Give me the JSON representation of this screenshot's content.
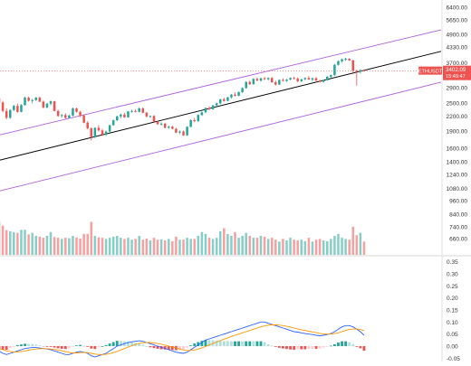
{
  "chart_data": [
    {
      "type": "candlestick",
      "symbol_label": "ETHUSDT",
      "last_price_label": "3402.09",
      "countdown_label": "15:49:47",
      "y_scale": "log",
      "ylim": [
        570,
        6600
      ],
      "y_ticks": [
        "6400.00",
        "5650.00",
        "4900.00",
        "4330.00",
        "3700.00",
        "3300.00",
        "2900.00",
        "2500.00",
        "2200.00",
        "1900.00",
        "1600.00",
        "1400.00",
        "1240.00",
        "1080.00",
        "960.00",
        "840.00",
        "740.00",
        "660.00"
      ],
      "price_tick_values": [
        6400,
        5650,
        4900,
        4330,
        3700,
        3300,
        2900,
        2500,
        2200,
        1900,
        1600,
        1400,
        1240,
        1080,
        960,
        840,
        740,
        660
      ],
      "last_price": 3402.09,
      "channel": {
        "color": "#b061e0",
        "lower_line": {
          "start": 1050,
          "end": 3050
        },
        "middle_line": {
          "start": 1420,
          "end": 4130,
          "color": "#000000"
        },
        "upper_line": {
          "start": 1820,
          "end": 5100
        }
      },
      "candles": [
        [
          2600,
          2620,
          2480,
          2500
        ],
        [
          2500,
          2540,
          2270,
          2300
        ],
        [
          2300,
          2360,
          2120,
          2150
        ],
        [
          2150,
          2340,
          2130,
          2320
        ],
        [
          2320,
          2440,
          2300,
          2420
        ],
        [
          2420,
          2470,
          2260,
          2280
        ],
        [
          2280,
          2460,
          2270,
          2440
        ],
        [
          2440,
          2650,
          2420,
          2620
        ],
        [
          2620,
          2650,
          2520,
          2540
        ],
        [
          2540,
          2590,
          2480,
          2560
        ],
        [
          2560,
          2640,
          2540,
          2620
        ],
        [
          2620,
          2650,
          2510,
          2520
        ],
        [
          2520,
          2550,
          2360,
          2380
        ],
        [
          2380,
          2490,
          2360,
          2470
        ],
        [
          2470,
          2550,
          2430,
          2530
        ],
        [
          2530,
          2540,
          2290,
          2300
        ],
        [
          2300,
          2330,
          2170,
          2190
        ],
        [
          2190,
          2230,
          2150,
          2210
        ],
        [
          2210,
          2250,
          2130,
          2150
        ],
        [
          2150,
          2220,
          2140,
          2200
        ],
        [
          2200,
          2380,
          2180,
          2360
        ],
        [
          2360,
          2380,
          2260,
          2280
        ],
        [
          2280,
          2300,
          2170,
          2200
        ],
        [
          2200,
          2220,
          2040,
          2050
        ],
        [
          2050,
          2080,
          1920,
          1940
        ],
        [
          1940,
          1960,
          1720,
          1780
        ],
        [
          1780,
          1960,
          1760,
          1950
        ],
        [
          1950,
          2000,
          1880,
          1900
        ],
        [
          1900,
          1930,
          1800,
          1820
        ],
        [
          1820,
          1900,
          1800,
          1880
        ],
        [
          1880,
          2010,
          1860,
          2000
        ],
        [
          2000,
          2110,
          1990,
          2100
        ],
        [
          2100,
          2200,
          2080,
          2180
        ],
        [
          2180,
          2240,
          2140,
          2220
        ],
        [
          2220,
          2260,
          2150,
          2160
        ],
        [
          2160,
          2300,
          2150,
          2290
        ],
        [
          2290,
          2330,
          2260,
          2300
        ],
        [
          2300,
          2340,
          2270,
          2280
        ],
        [
          2280,
          2380,
          2270,
          2360
        ],
        [
          2360,
          2380,
          2250,
          2260
        ],
        [
          2260,
          2280,
          2160,
          2180
        ],
        [
          2180,
          2200,
          2150,
          2190
        ],
        [
          2190,
          2210,
          2060,
          2070
        ],
        [
          2070,
          2090,
          2010,
          2020
        ],
        [
          2020,
          2060,
          1990,
          2030
        ],
        [
          2030,
          2050,
          1940,
          1950
        ],
        [
          1950,
          1990,
          1930,
          1970
        ],
        [
          1970,
          1990,
          1920,
          1930
        ],
        [
          1930,
          1950,
          1850,
          1860
        ],
        [
          1860,
          1900,
          1830,
          1880
        ],
        [
          1880,
          1900,
          1800,
          1810
        ],
        [
          1810,
          1980,
          1800,
          1970
        ],
        [
          1970,
          2120,
          1960,
          2100
        ],
        [
          2100,
          2150,
          2060,
          2080
        ],
        [
          2080,
          2230,
          2070,
          2210
        ],
        [
          2210,
          2290,
          2190,
          2270
        ],
        [
          2270,
          2380,
          2250,
          2370
        ],
        [
          2370,
          2410,
          2320,
          2340
        ],
        [
          2340,
          2440,
          2330,
          2430
        ],
        [
          2430,
          2500,
          2400,
          2480
        ],
        [
          2480,
          2590,
          2460,
          2580
        ],
        [
          2580,
          2620,
          2520,
          2540
        ],
        [
          2540,
          2640,
          2530,
          2630
        ],
        [
          2630,
          2720,
          2600,
          2700
        ],
        [
          2700,
          2760,
          2650,
          2670
        ],
        [
          2670,
          2780,
          2660,
          2770
        ],
        [
          2770,
          2900,
          2740,
          2880
        ],
        [
          2880,
          3080,
          2860,
          3060
        ],
        [
          3060,
          3100,
          2970,
          2990
        ],
        [
          2990,
          3170,
          2980,
          3150
        ],
        [
          3150,
          3200,
          3080,
          3100
        ],
        [
          3100,
          3190,
          3060,
          3170
        ],
        [
          3170,
          3220,
          3120,
          3140
        ],
        [
          3140,
          3200,
          3110,
          3180
        ],
        [
          3180,
          3210,
          3030,
          3050
        ],
        [
          3050,
          3100,
          2950,
          2980
        ],
        [
          2980,
          3140,
          2970,
          3120
        ],
        [
          3120,
          3170,
          3070,
          3090
        ],
        [
          3090,
          3150,
          3060,
          3130
        ],
        [
          3130,
          3200,
          3110,
          3180
        ],
        [
          3180,
          3220,
          3140,
          3160
        ],
        [
          3160,
          3200,
          3050,
          3080
        ],
        [
          3080,
          3150,
          3060,
          3140
        ],
        [
          3140,
          3200,
          3110,
          3180
        ],
        [
          3180,
          3240,
          3120,
          3130
        ],
        [
          3130,
          3190,
          3070,
          3170
        ],
        [
          3170,
          3210,
          3090,
          3100
        ],
        [
          3100,
          3130,
          3040,
          3060
        ],
        [
          3060,
          3120,
          3040,
          3110
        ],
        [
          3110,
          3240,
          3100,
          3220
        ],
        [
          3220,
          3290,
          3180,
          3270
        ],
        [
          3270,
          3650,
          3250,
          3620
        ],
        [
          3620,
          3780,
          3590,
          3750
        ],
        [
          3750,
          3850,
          3700,
          3820
        ],
        [
          3820,
          3880,
          3760,
          3840
        ],
        [
          3840,
          3860,
          3760,
          3780
        ],
        [
          3780,
          3800,
          3300,
          3420
        ],
        [
          3420,
          3450,
          2950,
          3380
        ],
        [
          3380,
          3460,
          3320,
          3440
        ],
        [
          3440,
          3470,
          3380,
          3402
        ]
      ],
      "volume": {
        "values": [
          0.88,
          0.77,
          0.65,
          0.62,
          0.6,
          0.58,
          0.66,
          0.66,
          0.54,
          0.58,
          0.5,
          0.48,
          0.45,
          0.5,
          0.6,
          0.47,
          0.45,
          0.42,
          0.45,
          0.44,
          0.5,
          0.46,
          0.43,
          0.55,
          0.55,
          0.87,
          0.5,
          0.46,
          0.45,
          0.42,
          0.45,
          0.48,
          0.5,
          0.45,
          0.42,
          0.45,
          0.4,
          0.42,
          0.5,
          0.4,
          0.43,
          0.38,
          0.45,
          0.4,
          0.41,
          0.38,
          0.42,
          0.36,
          0.48,
          0.4,
          0.4,
          0.45,
          0.42,
          0.42,
          0.5,
          0.6,
          0.55,
          0.45,
          0.42,
          0.45,
          0.62,
          0.7,
          0.55,
          0.5,
          0.6,
          0.45,
          0.5,
          0.58,
          0.5,
          0.45,
          0.45,
          0.5,
          0.48,
          0.42,
          0.45,
          0.4,
          0.35,
          0.42,
          0.38,
          0.45,
          0.4,
          0.38,
          0.4,
          0.36,
          0.45,
          0.35,
          0.4,
          0.42,
          0.38,
          0.36,
          0.42,
          0.5,
          0.55,
          0.45,
          0.42,
          0.4,
          0.74,
          0.52,
          0.58,
          0.35
        ]
      },
      "macd": {
        "y_ticks": [
          "0.35",
          "0.30",
          "0.25",
          "0.20",
          "0.15",
          "0.10",
          "0.05",
          "0.00",
          "-0.05"
        ],
        "ylim": [
          -0.06,
          0.36
        ],
        "macd_color": "#2962ff",
        "signal_color": "#ff9800",
        "macd_line": [
          -0.02,
          -0.03,
          -0.035,
          -0.03,
          -0.025,
          -0.02,
          -0.015,
          -0.01,
          -0.008,
          -0.006,
          -0.006,
          -0.008,
          -0.01,
          -0.012,
          -0.015,
          -0.02,
          -0.025,
          -0.03,
          -0.035,
          -0.035,
          -0.03,
          -0.025,
          -0.022,
          -0.025,
          -0.03,
          -0.04,
          -0.045,
          -0.04,
          -0.035,
          -0.03,
          -0.02,
          -0.01,
          0.0,
          0.005,
          0.01,
          0.015,
          0.018,
          0.02,
          0.022,
          0.02,
          0.015,
          0.01,
          0.005,
          0.0,
          -0.005,
          -0.01,
          -0.015,
          -0.02,
          -0.025,
          -0.028,
          -0.03,
          -0.025,
          -0.015,
          -0.005,
          0.005,
          0.015,
          0.025,
          0.03,
          0.035,
          0.04,
          0.045,
          0.05,
          0.055,
          0.06,
          0.065,
          0.07,
          0.075,
          0.08,
          0.085,
          0.09,
          0.095,
          0.1,
          0.1,
          0.095,
          0.09,
          0.085,
          0.08,
          0.075,
          0.07,
          0.065,
          0.06,
          0.058,
          0.055,
          0.052,
          0.05,
          0.048,
          0.045,
          0.043,
          0.045,
          0.048,
          0.052,
          0.06,
          0.07,
          0.08,
          0.085,
          0.085,
          0.08,
          0.07,
          0.06,
          0.045
        ],
        "signal_line": [
          -0.01,
          -0.015,
          -0.02,
          -0.022,
          -0.024,
          -0.024,
          -0.022,
          -0.02,
          -0.017,
          -0.014,
          -0.012,
          -0.011,
          -0.01,
          -0.011,
          -0.012,
          -0.014,
          -0.016,
          -0.019,
          -0.023,
          -0.026,
          -0.028,
          -0.028,
          -0.027,
          -0.026,
          -0.027,
          -0.03,
          -0.033,
          -0.035,
          -0.035,
          -0.034,
          -0.031,
          -0.027,
          -0.022,
          -0.016,
          -0.01,
          -0.004,
          0.002,
          0.007,
          0.011,
          0.014,
          0.015,
          0.015,
          0.013,
          0.011,
          0.008,
          0.004,
          0.0,
          -0.004,
          -0.008,
          -0.012,
          -0.016,
          -0.018,
          -0.018,
          -0.016,
          -0.012,
          -0.007,
          -0.001,
          0.005,
          0.011,
          0.017,
          0.023,
          0.029,
          0.034,
          0.04,
          0.045,
          0.05,
          0.055,
          0.06,
          0.065,
          0.07,
          0.075,
          0.08,
          0.084,
          0.087,
          0.088,
          0.088,
          0.087,
          0.085,
          0.082,
          0.079,
          0.075,
          0.071,
          0.068,
          0.065,
          0.062,
          0.059,
          0.056,
          0.053,
          0.051,
          0.05,
          0.05,
          0.052,
          0.055,
          0.06,
          0.065,
          0.069,
          0.071,
          0.071,
          0.069,
          0.064
        ]
      }
    }
  ]
}
